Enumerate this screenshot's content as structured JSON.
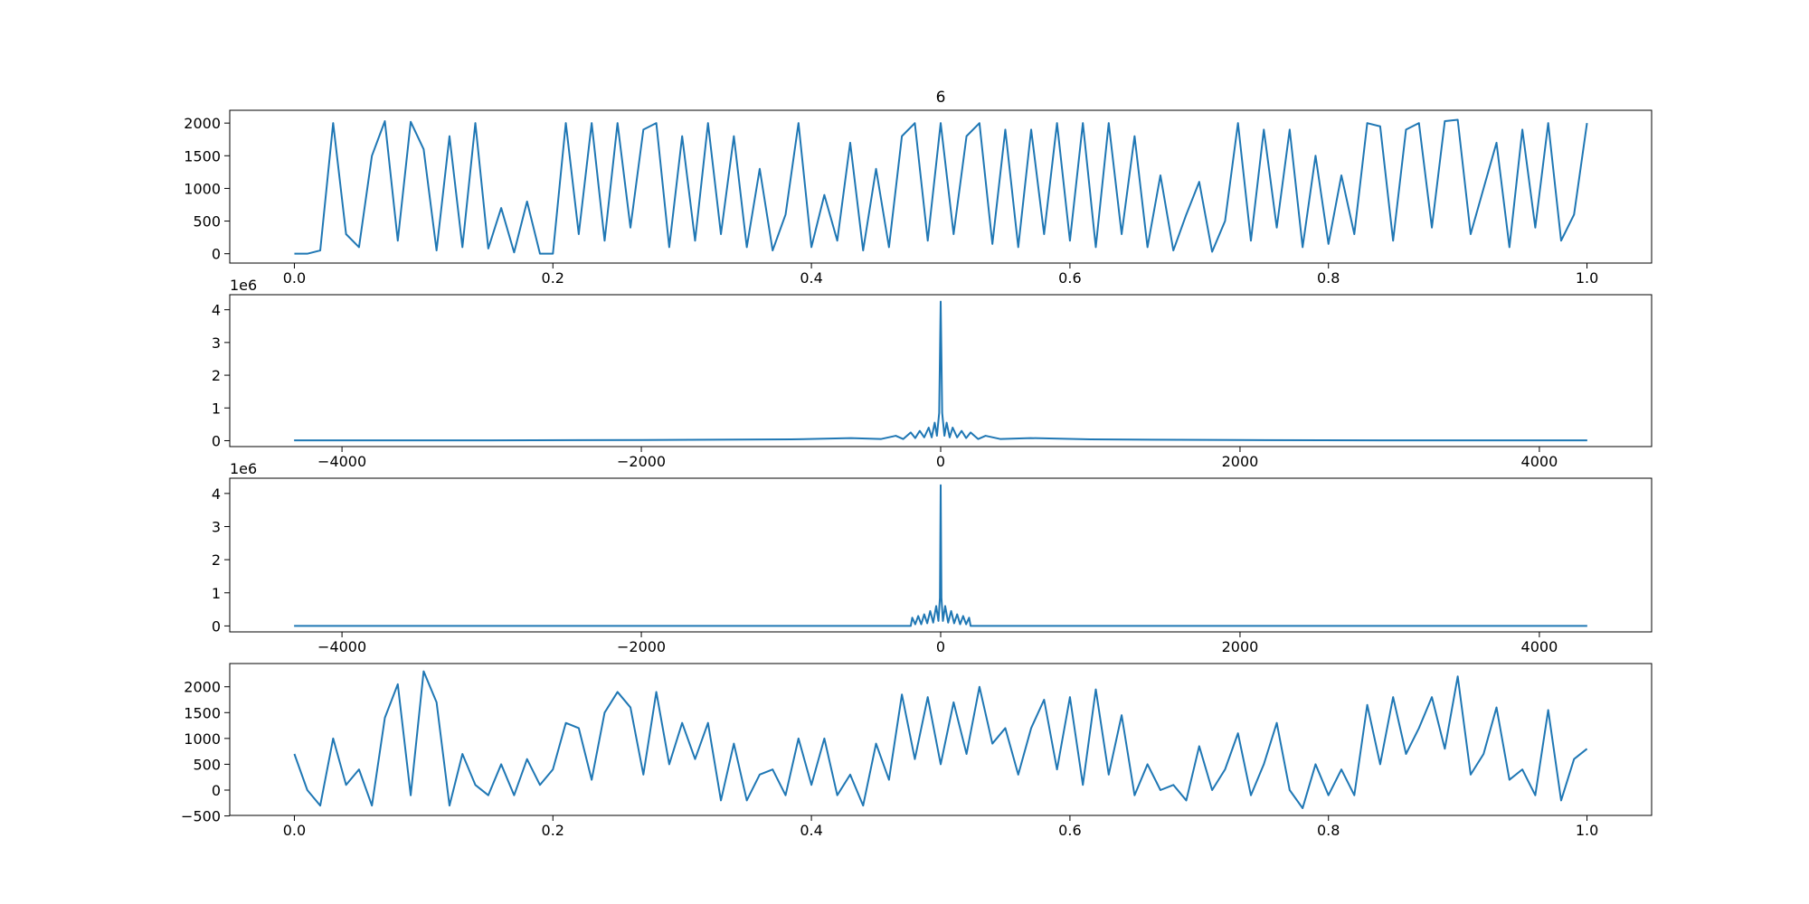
{
  "chart_data": [
    {
      "type": "line",
      "title": "6",
      "x": [
        0,
        0.01,
        0.02,
        0.03,
        0.04,
        0.05,
        0.06,
        0.07,
        0.08,
        0.09,
        0.1,
        0.11,
        0.12,
        0.13,
        0.14,
        0.15,
        0.16,
        0.17,
        0.18,
        0.19,
        0.2,
        0.21,
        0.22,
        0.23,
        0.24,
        0.25,
        0.26,
        0.27,
        0.28,
        0.29,
        0.3,
        0.31,
        0.32,
        0.33,
        0.34,
        0.35,
        0.36,
        0.37,
        0.38,
        0.39,
        0.4,
        0.41,
        0.42,
        0.43,
        0.44,
        0.45,
        0.46,
        0.47,
        0.48,
        0.49,
        0.5,
        0.51,
        0.52,
        0.53,
        0.54,
        0.55,
        0.56,
        0.57,
        0.58,
        0.59,
        0.6,
        0.61,
        0.62,
        0.63,
        0.64,
        0.65,
        0.66,
        0.67,
        0.68,
        0.69,
        0.7,
        0.71,
        0.72,
        0.73,
        0.74,
        0.75,
        0.76,
        0.77,
        0.78,
        0.79,
        0.8,
        0.81,
        0.82,
        0.83,
        0.84,
        0.85,
        0.86,
        0.87,
        0.88,
        0.89,
        0.9,
        0.91,
        0.92,
        0.93,
        0.94,
        0.95,
        0.96,
        0.97,
        0.98,
        0.99,
        1
      ],
      "values": [
        0,
        0,
        50,
        2000,
        300,
        100,
        1500,
        2030,
        200,
        2020,
        1600,
        50,
        1800,
        100,
        2000,
        80,
        700,
        20,
        800,
        0,
        0,
        2000,
        300,
        2000,
        200,
        2000,
        400,
        1900,
        2000,
        100,
        1800,
        200,
        2000,
        300,
        1800,
        100,
        1300,
        50,
        600,
        2000,
        100,
        900,
        200,
        1700,
        50,
        1300,
        100,
        1800,
        2000,
        200,
        2000,
        300,
        1800,
        2000,
        150,
        1900,
        100,
        1900,
        300,
        2000,
        200,
        2000,
        100,
        2000,
        300,
        1800,
        100,
        1200,
        50,
        600,
        1100,
        30,
        500,
        2000,
        200,
        1900,
        400,
        1900,
        100,
        1500,
        150,
        1200,
        300,
        2000,
        1950,
        200,
        1900,
        2000,
        400,
        2030,
        2050,
        300,
        1000,
        1700,
        100,
        1900,
        400,
        2000,
        200,
        600,
        2000
      ],
      "color": "#1f77b4",
      "xlim": [
        -0.05,
        1.05
      ],
      "ylim": [
        -143,
        2196
      ],
      "xticks": [
        {
          "value": 0,
          "label": "0.0"
        },
        0.2,
        0.4,
        0.6,
        0.8,
        {
          "value": 1,
          "label": "1.0"
        }
      ],
      "yticks": [
        0,
        500,
        1000,
        1500,
        2000
      ]
    },
    {
      "type": "line",
      "y_offset": "1e6",
      "x": [
        -4320,
        -3000,
        -2000,
        -1000,
        -600,
        -400,
        -300,
        -250,
        -200,
        -170,
        -140,
        -110,
        -80,
        -60,
        -40,
        -25,
        -10,
        0,
        10,
        25,
        40,
        60,
        80,
        110,
        140,
        170,
        200,
        250,
        300,
        400,
        600,
        1000,
        2000,
        3000,
        4320
      ],
      "values": [
        0.01,
        0.01,
        0.02,
        0.04,
        0.08,
        0.05,
        0.15,
        0.05,
        0.25,
        0.08,
        0.3,
        0.1,
        0.4,
        0.1,
        0.55,
        0.15,
        0.85,
        4.25,
        0.85,
        0.15,
        0.55,
        0.1,
        0.4,
        0.1,
        0.3,
        0.08,
        0.25,
        0.05,
        0.15,
        0.05,
        0.08,
        0.04,
        0.02,
        0.01,
        0.01
      ],
      "color": "#1f77b4",
      "xlim": [
        -4750,
        4750
      ],
      "ylim": [
        -0.18,
        4.46
      ],
      "xticks": [
        {
          "value": -4000,
          "label": "−4000"
        },
        {
          "value": -2000,
          "label": "−2000"
        },
        0,
        2000,
        4000
      ],
      "yticks": [
        0,
        1,
        2,
        3,
        4
      ]
    },
    {
      "type": "line",
      "y_offset": "1e6",
      "x": [
        -4320,
        -200,
        -190,
        -170,
        -150,
        -130,
        -110,
        -90,
        -70,
        -50,
        -30,
        -15,
        -5,
        0,
        5,
        15,
        30,
        50,
        70,
        90,
        110,
        130,
        150,
        170,
        190,
        200,
        4320
      ],
      "values": [
        0,
        0,
        0.25,
        0.05,
        0.3,
        0.05,
        0.35,
        0.08,
        0.45,
        0.1,
        0.6,
        0.15,
        0.85,
        4.25,
        0.85,
        0.15,
        0.6,
        0.1,
        0.45,
        0.08,
        0.35,
        0.05,
        0.3,
        0.05,
        0.25,
        0,
        0
      ],
      "color": "#1f77b4",
      "xlim": [
        -4750,
        4750
      ],
      "ylim": [
        -0.18,
        4.46
      ],
      "xticks": [
        {
          "value": -4000,
          "label": "−4000"
        },
        {
          "value": -2000,
          "label": "−2000"
        },
        0,
        2000,
        4000
      ],
      "yticks": [
        0,
        1,
        2,
        3,
        4
      ]
    },
    {
      "type": "line",
      "x": [
        0,
        0.01,
        0.02,
        0.03,
        0.04,
        0.05,
        0.06,
        0.07,
        0.08,
        0.09,
        0.1,
        0.11,
        0.12,
        0.13,
        0.14,
        0.15,
        0.16,
        0.17,
        0.18,
        0.19,
        0.2,
        0.21,
        0.22,
        0.23,
        0.24,
        0.25,
        0.26,
        0.27,
        0.28,
        0.29,
        0.3,
        0.31,
        0.32,
        0.33,
        0.34,
        0.35,
        0.36,
        0.37,
        0.38,
        0.39,
        0.4,
        0.41,
        0.42,
        0.43,
        0.44,
        0.45,
        0.46,
        0.47,
        0.48,
        0.49,
        0.5,
        0.51,
        0.52,
        0.53,
        0.54,
        0.55,
        0.56,
        0.57,
        0.58,
        0.59,
        0.6,
        0.61,
        0.62,
        0.63,
        0.64,
        0.65,
        0.66,
        0.67,
        0.68,
        0.69,
        0.7,
        0.71,
        0.72,
        0.73,
        0.74,
        0.75,
        0.76,
        0.77,
        0.78,
        0.79,
        0.8,
        0.81,
        0.82,
        0.83,
        0.84,
        0.85,
        0.86,
        0.87,
        0.88,
        0.89,
        0.9,
        0.91,
        0.92,
        0.93,
        0.94,
        0.95,
        0.96,
        0.97,
        0.98,
        0.99,
        1
      ],
      "values": [
        700,
        0,
        -300,
        1000,
        100,
        400,
        -300,
        1400,
        2050,
        -100,
        2300,
        1700,
        -300,
        700,
        100,
        -100,
        500,
        -100,
        600,
        100,
        400,
        1300,
        1200,
        200,
        1500,
        1900,
        1600,
        300,
        1900,
        500,
        1300,
        600,
        1300,
        -200,
        900,
        -200,
        300,
        400,
        -100,
        1000,
        100,
        1000,
        -100,
        300,
        -300,
        900,
        200,
        1850,
        600,
        1800,
        500,
        1700,
        700,
        2000,
        900,
        1200,
        300,
        1200,
        1750,
        400,
        1800,
        100,
        1950,
        300,
        1450,
        -100,
        500,
        0,
        100,
        -200,
        850,
        0,
        400,
        1100,
        -100,
        500,
        1300,
        0,
        -350,
        500,
        -100,
        400,
        -100,
        1650,
        500,
        1800,
        700,
        1200,
        1800,
        800,
        2200,
        300,
        700,
        1600,
        200,
        400,
        -100,
        1550,
        -200,
        600,
        800
      ],
      "color": "#1f77b4",
      "xlim": [
        -0.05,
        1.05
      ],
      "ylim": [
        -490,
        2450
      ],
      "xticks": [
        {
          "value": 0,
          "label": "0.0"
        },
        0.2,
        0.4,
        0.6,
        0.8,
        {
          "value": 1,
          "label": "1.0"
        }
      ],
      "yticks": [
        {
          "value": -500,
          "label": "−500"
        },
        0,
        500,
        1000,
        1500,
        2000
      ]
    }
  ]
}
